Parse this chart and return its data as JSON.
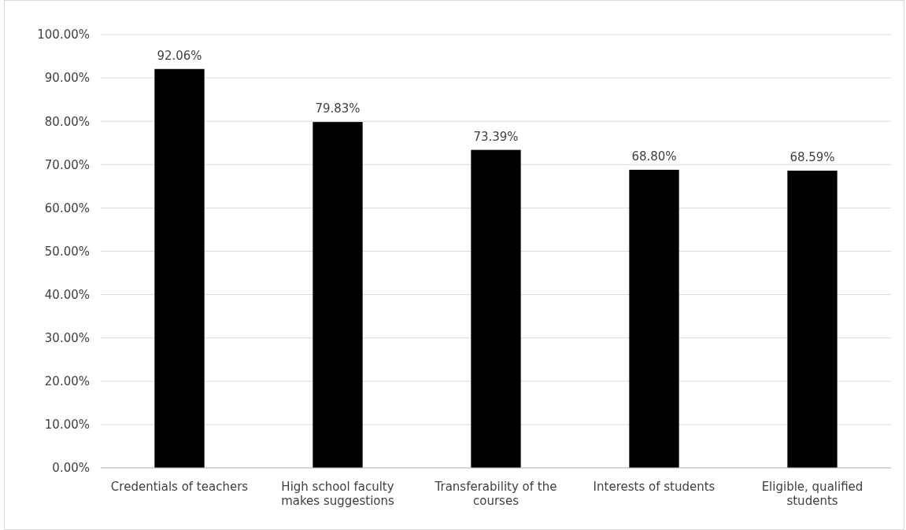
{
  "chart_data": {
    "type": "bar",
    "categories": [
      "Credentials of teachers",
      "High school faculty makes suggestions",
      "Transferability of the courses",
      "Interests of students",
      "Eligible, qualified students"
    ],
    "values": [
      92.06,
      79.83,
      73.39,
      68.8,
      68.59
    ],
    "value_labels": [
      "92.06%",
      "79.83%",
      "73.39%",
      "68.80%",
      "68.59%"
    ],
    "color": "#000000",
    "ylim": [
      0,
      100
    ],
    "yticks": [
      {
        "value": 0,
        "label": "0.00%"
      },
      {
        "value": 10,
        "label": "10.00%"
      },
      {
        "value": 20,
        "label": "20.00%"
      },
      {
        "value": 30,
        "label": "30.00%"
      },
      {
        "value": 40,
        "label": "40.00%"
      },
      {
        "value": 50,
        "label": "50.00%"
      },
      {
        "value": 60,
        "label": "60.00%"
      },
      {
        "value": 70,
        "label": "70.00%"
      },
      {
        "value": 80,
        "label": "80.00%"
      },
      {
        "value": 90,
        "label": "90.00%"
      },
      {
        "value": 100,
        "label": "100.00%"
      }
    ],
    "grid": "y"
  }
}
